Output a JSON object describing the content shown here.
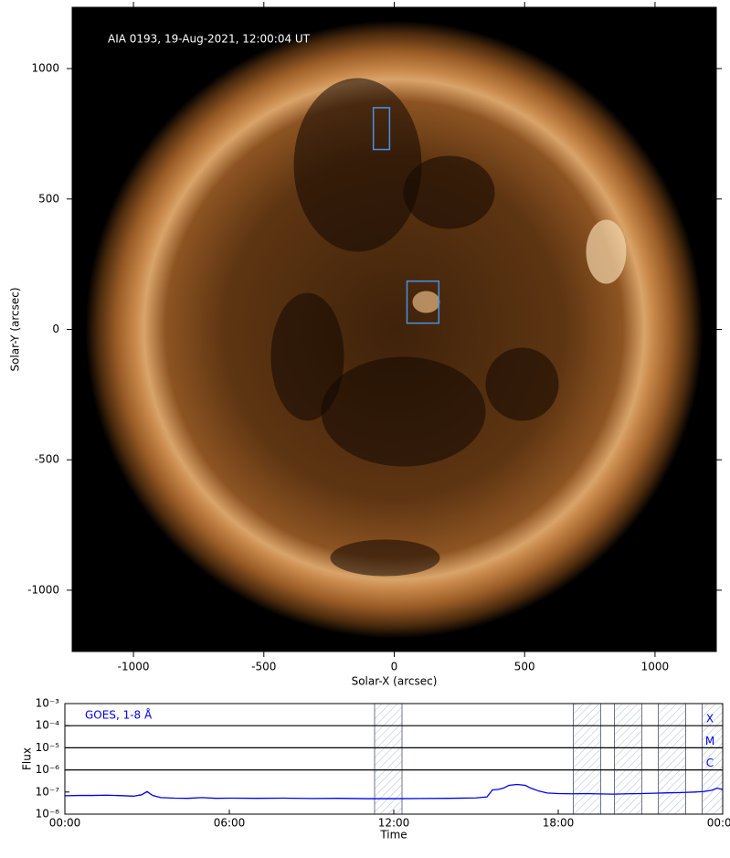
{
  "chart_data": [
    {
      "type": "image",
      "annotation": "AIA 0193, 19-Aug-2021, 12:00:04 UT",
      "x_label": "Solar-X (arcsec)",
      "y_label": "Solar-Y (arcsec)",
      "xlim": [
        -1235,
        1235
      ],
      "ylim": [
        -1235,
        1235
      ],
      "xticks": [
        -1000,
        -500,
        0,
        500,
        1000
      ],
      "yticks": [
        -1000,
        -500,
        0,
        500,
        1000
      ],
      "boxes": [
        {
          "x": [
            -80,
            -18
          ],
          "y": [
            690,
            850
          ],
          "color": "#4a90e2"
        },
        {
          "x": [
            49,
            171
          ],
          "y": [
            24,
            185
          ],
          "color": "#4a90e2"
        }
      ]
    },
    {
      "type": "line",
      "x_label": "Time",
      "y_label": "Flux",
      "xlim": [
        0,
        24
      ],
      "xticks": [
        {
          "value": 0,
          "label": "00:00"
        },
        {
          "value": 6,
          "label": "06:00"
        },
        {
          "value": 12,
          "label": "12:00"
        },
        {
          "value": 18,
          "label": "18:00"
        },
        {
          "value": 24,
          "label": "00:00"
        }
      ],
      "ylim": [
        1e-08,
        0.001
      ],
      "ylog": true,
      "yticks": [
        {
          "value": 1e-08,
          "label": "10⁻⁸"
        },
        {
          "value": 1e-07,
          "label": "10⁻⁷"
        },
        {
          "value": 1e-06,
          "label": "10⁻⁶"
        },
        {
          "value": 1e-05,
          "label": "10⁻⁵"
        },
        {
          "value": 0.0001,
          "label": "10⁻⁴"
        },
        {
          "value": 0.001,
          "label": "10⁻³"
        }
      ],
      "levels": [
        {
          "value": 0.0001,
          "label": "X"
        },
        {
          "value": 1e-05,
          "label": "M"
        },
        {
          "value": 1e-06,
          "label": "C"
        }
      ],
      "shaded": [
        [
          11.3,
          12.3
        ],
        [
          18.55,
          19.55
        ],
        [
          20.05,
          21.05
        ],
        [
          21.65,
          22.65
        ],
        [
          23.25,
          24
        ]
      ],
      "x": [
        0,
        0.5,
        1,
        1.5,
        2,
        2.5,
        2.8,
        3.0,
        3.2,
        3.5,
        4,
        4.5,
        5,
        5.5,
        6,
        7,
        8,
        9,
        10,
        11,
        12,
        13,
        14,
        15,
        15.4,
        15.6,
        15.8,
        16.0,
        16.2,
        16.5,
        16.8,
        17.0,
        17.3,
        17.6,
        18,
        18.5,
        19,
        19.5,
        20,
        20.5,
        21,
        21.5,
        22,
        22.5,
        23,
        23.3,
        23.6,
        23.8,
        24
      ],
      "series": [
        {
          "name": "GOES, 1-8 Å",
          "color": "#0000ee",
          "values": [
            6.8e-08,
            7e-08,
            7e-08,
            7.2e-08,
            6.9e-08,
            6.5e-08,
            7.5e-08,
            1.05e-07,
            7e-08,
            5.6e-08,
            5.3e-08,
            5.2e-08,
            5.6e-08,
            5.2e-08,
            5.3e-08,
            5.2e-08,
            5.3e-08,
            5.1e-08,
            5.2e-08,
            5e-08,
            5e-08,
            5.1e-08,
            5.2e-08,
            5.4e-08,
            6e-08,
            1.25e-07,
            1.3e-07,
            1.5e-07,
            2e-07,
            2.2e-07,
            2e-07,
            1.5e-07,
            1.1e-07,
            9e-08,
            8.5e-08,
            8.3e-08,
            8.5e-08,
            8.2e-08,
            8e-08,
            8.3e-08,
            8.5e-08,
            8.8e-08,
            9.2e-08,
            9.5e-08,
            1e-07,
            1.05e-07,
            1.2e-07,
            1.5e-07,
            1.3e-07
          ]
        }
      ]
    }
  ]
}
